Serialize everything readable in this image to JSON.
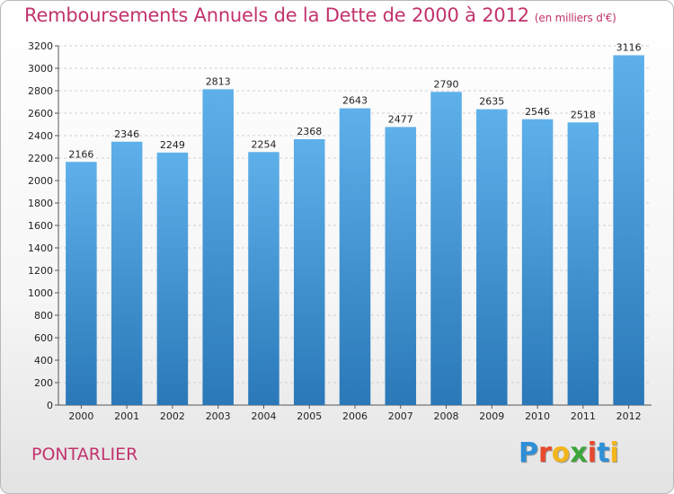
{
  "title": "Remboursements Annuels de la Dette de 2000 à 2012",
  "subtitle": "(en milliers d'€)",
  "city": "PONTARLIER",
  "logo": {
    "letters": [
      "P",
      "r",
      "o",
      "x",
      "i",
      "t",
      "i"
    ],
    "colors": [
      "#2e8fd6",
      "#e8482c",
      "#f3b51c",
      "#3aa63a",
      "#e8482c",
      "#2e8fd6",
      "#f3b51c"
    ]
  },
  "colors": {
    "bar_top": "#5eb0ea",
    "bar_bottom": "#2a78b8",
    "grid": "#d0d0d0"
  },
  "chart_data": {
    "type": "bar",
    "categories": [
      "2000",
      "2001",
      "2002",
      "2003",
      "2004",
      "2005",
      "2006",
      "2007",
      "2008",
      "2009",
      "2010",
      "2011",
      "2012"
    ],
    "values": [
      2166,
      2346,
      2249,
      2813,
      2254,
      2368,
      2643,
      2477,
      2790,
      2635,
      2546,
      2518,
      3116
    ],
    "ylim": [
      0,
      3200
    ],
    "yticks": [
      0,
      200,
      400,
      600,
      800,
      1000,
      1200,
      1400,
      1600,
      1800,
      2000,
      2200,
      2400,
      2600,
      2800,
      3000,
      3200
    ],
    "grid": true,
    "legend": "none"
  }
}
